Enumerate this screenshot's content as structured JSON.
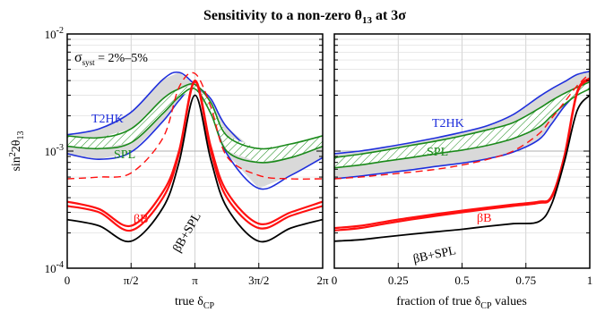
{
  "title": {
    "main": "Sensitivity to a non-zero θ",
    "sub": "13",
    "tail": " at 3σ"
  },
  "colors": {
    "T2HK": "#1f2fdc",
    "SPL": "#1a8a1a",
    "betaB": "#ff1010",
    "combo": "#000000",
    "band": "#d9d9d9"
  },
  "chart_data": [
    {
      "type": "line",
      "panel": "left",
      "annotation": {
        "sigma": "σ",
        "sub": "syst",
        "rest": " = 2%–5%"
      },
      "ylabel": {
        "a": "sin",
        "sup": "2",
        "b": "2θ",
        "sub": "13"
      },
      "xlabel": {
        "a": "true δ",
        "sub": "CP"
      },
      "yscale": "log",
      "ylim": [
        0.0001,
        0.01
      ],
      "xlim": [
        0,
        6.2832
      ],
      "yticks": [
        {
          "m": "10",
          "e": "-4"
        },
        {
          "m": "10",
          "e": "-3"
        },
        {
          "m": "10",
          "e": "-2"
        }
      ],
      "xticks": [
        "0",
        "π/2",
        "π",
        "3π/2",
        "2π"
      ],
      "grid": true,
      "x": [
        0,
        0.785,
        1.571,
        2.356,
        2.75,
        3.1416,
        3.53,
        3.927,
        4.712,
        5.498,
        6.2832
      ],
      "series": [
        {
          "name": "T2HK",
          "upper": [
            0.00138,
            0.00155,
            0.00215,
            0.0041,
            0.0047,
            0.0037,
            0.0028,
            0.0016,
            0.00095,
            0.00105,
            0.00135
          ],
          "lower": [
            0.00095,
            0.00085,
            0.00098,
            0.0018,
            0.0027,
            0.0036,
            0.0022,
            0.00095,
            0.00048,
            0.00062,
            0.00088
          ]
        },
        {
          "name": "SPL",
          "upper": [
            0.00135,
            0.0013,
            0.00155,
            0.0028,
            0.0034,
            0.0037,
            0.0026,
            0.00135,
            0.00105,
            0.00115,
            0.00135
          ],
          "lower": [
            0.0011,
            0.00105,
            0.00118,
            0.0021,
            0.0029,
            0.0034,
            0.0021,
            0.001,
            0.0008,
            0.00088,
            0.0011
          ]
        },
        {
          "name": "βB",
          "upper": [
            0.00037,
            0.00032,
            0.00023,
            0.00045,
            0.001,
            0.004,
            0.0011,
            0.00045,
            0.00024,
            0.0003,
            0.00037
          ],
          "lower": [
            0.00034,
            0.0003,
            0.00021,
            0.0004,
            0.00095,
            0.0039,
            0.001,
            0.0004,
            0.00022,
            0.00028,
            0.00034
          ],
          "dashed": [
            0.00058,
            0.0006,
            0.00065,
            0.0013,
            0.0035,
            0.0046,
            0.0024,
            0.0009,
            0.00062,
            0.00058,
            0.00058
          ]
        },
        {
          "name": "βB+SPL",
          "values": [
            0.00026,
            0.00023,
            0.00017,
            0.00033,
            0.0008,
            0.003,
            0.00085,
            0.00033,
            0.00017,
            0.00022,
            0.00026
          ]
        }
      ]
    },
    {
      "type": "line",
      "panel": "right",
      "xlabel": {
        "a": "fraction of true δ",
        "sub": "CP",
        "b": " values"
      },
      "yscale": "log",
      "ylim": [
        0.0001,
        0.01
      ],
      "xlim": [
        0,
        1
      ],
      "xticks": [
        "0",
        "0.25",
        "0.5",
        "0.75",
        "1"
      ],
      "grid": true,
      "x": [
        0,
        0.1,
        0.2,
        0.3,
        0.4,
        0.5,
        0.6,
        0.7,
        0.8,
        0.85,
        0.9,
        0.95,
        1.0
      ],
      "series": [
        {
          "name": "T2HK",
          "upper": [
            0.00095,
            0.001,
            0.00108,
            0.00118,
            0.0013,
            0.00145,
            0.00165,
            0.00205,
            0.0029,
            0.0034,
            0.0039,
            0.0045,
            0.0048
          ],
          "lower": [
            0.00058,
            0.00061,
            0.00065,
            0.00069,
            0.00074,
            0.00079,
            0.00086,
            0.00098,
            0.00125,
            0.0017,
            0.0024,
            0.0031,
            0.0036
          ]
        },
        {
          "name": "SPL",
          "upper": [
            0.00088,
            0.00094,
            0.00102,
            0.00112,
            0.00122,
            0.00135,
            0.00152,
            0.00175,
            0.0023,
            0.0027,
            0.0031,
            0.0035,
            0.0039
          ],
          "lower": [
            0.00072,
            0.00076,
            0.00082,
            0.00088,
            0.00095,
            0.00102,
            0.00112,
            0.00128,
            0.0016,
            0.002,
            0.0025,
            0.003,
            0.0034
          ]
        },
        {
          "name": "βB",
          "upper": [
            0.00022,
            0.00023,
            0.00025,
            0.00027,
            0.00029,
            0.00031,
            0.00033,
            0.00035,
            0.00037,
            0.00041,
            0.0009,
            0.0032,
            0.0042
          ],
          "lower": [
            0.00021,
            0.00022,
            0.00024,
            0.00026,
            0.00028,
            0.0003,
            0.00032,
            0.00034,
            0.00036,
            0.0004,
            0.00085,
            0.0031,
            0.0041
          ],
          "dashed": [
            0.00058,
            0.0006,
            0.00063,
            0.00066,
            0.0007,
            0.00076,
            0.00085,
            0.001,
            0.0014,
            0.0019,
            0.0026,
            0.0036,
            0.0046
          ]
        },
        {
          "name": "βB+SPL",
          "values": [
            0.00017,
            0.000175,
            0.000185,
            0.000195,
            0.000205,
            0.000215,
            0.000228,
            0.00024,
            0.00025,
            0.00035,
            0.0008,
            0.0022,
            0.003
          ]
        }
      ]
    }
  ]
}
